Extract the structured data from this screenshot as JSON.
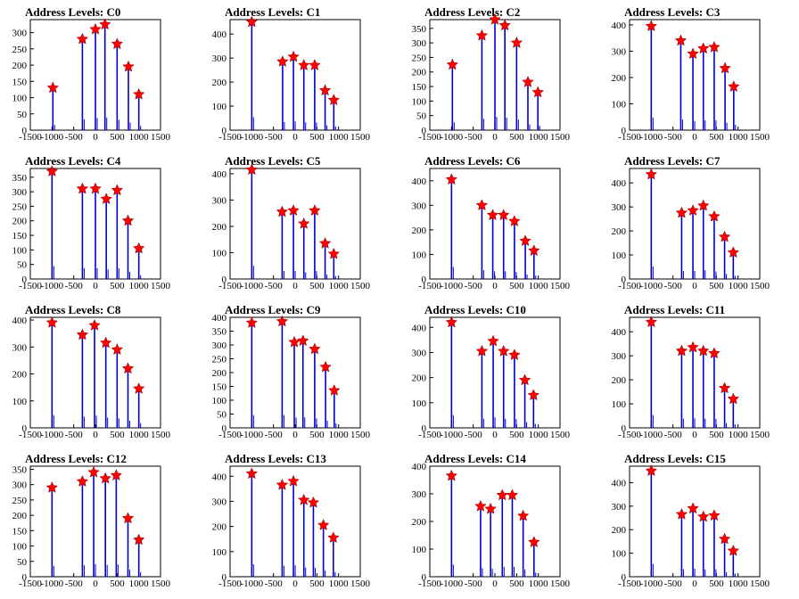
{
  "colors": {
    "histogram": "#0000cc",
    "peak_marker": "#ff0000",
    "axis": "#000000"
  },
  "chart_data": [
    {
      "type": "bar",
      "title": "Address Levels: C0",
      "xlim": [
        -1500,
        1500
      ],
      "ylim": [
        0,
        340
      ],
      "yticks": [
        0,
        50,
        100,
        150,
        200,
        250,
        300
      ],
      "xticks": [
        -1500,
        -1000,
        -500,
        0,
        500,
        1000,
        1500
      ],
      "xtick_labels": [
        "-1500",
        "-1000",
        "-500",
        "0",
        "500",
        "1000",
        "1500"
      ],
      "peaks": [
        {
          "x": -980,
          "y": 130
        },
        {
          "x": -300,
          "y": 280
        },
        {
          "x": 0,
          "y": 310
        },
        {
          "x": 220,
          "y": 325
        },
        {
          "x": 500,
          "y": 265
        },
        {
          "x": 760,
          "y": 195
        },
        {
          "x": 1000,
          "y": 110
        }
      ]
    },
    {
      "type": "bar",
      "title": "Address Levels: C1",
      "xlim": [
        -1500,
        1500
      ],
      "ylim": [
        0,
        460
      ],
      "yticks": [
        0,
        100,
        200,
        300,
        400
      ],
      "xticks": [
        -1500,
        -1000,
        -500,
        0,
        500,
        1000,
        1500
      ],
      "xtick_labels": [
        "-1500",
        "-1000",
        "-500",
        "0",
        "500",
        "1000",
        "1500"
      ],
      "peaks": [
        {
          "x": -1000,
          "y": 450
        },
        {
          "x": -290,
          "y": 285
        },
        {
          "x": -40,
          "y": 305
        },
        {
          "x": 200,
          "y": 270
        },
        {
          "x": 450,
          "y": 270
        },
        {
          "x": 690,
          "y": 165
        },
        {
          "x": 890,
          "y": 125
        }
      ]
    },
    {
      "type": "bar",
      "title": "Address Levels: C2",
      "xlim": [
        -1500,
        1500
      ],
      "ylim": [
        0,
        380
      ],
      "yticks": [
        0,
        50,
        100,
        150,
        200,
        250,
        300,
        350
      ],
      "xticks": [
        -1500,
        -1000,
        -500,
        0,
        500,
        1000,
        1500
      ],
      "xtick_labels": [
        "-1500",
        "-1000",
        "-500",
        "0",
        "500",
        "1000",
        "1500"
      ],
      "peaks": [
        {
          "x": -980,
          "y": 225
        },
        {
          "x": -300,
          "y": 325
        },
        {
          "x": 0,
          "y": 380
        },
        {
          "x": 230,
          "y": 360
        },
        {
          "x": 500,
          "y": 300
        },
        {
          "x": 760,
          "y": 165
        },
        {
          "x": 990,
          "y": 130
        }
      ]
    },
    {
      "type": "bar",
      "title": "Address Levels: C3",
      "xlim": [
        -1500,
        1500
      ],
      "ylim": [
        0,
        420
      ],
      "yticks": [
        0,
        100,
        200,
        300,
        400
      ],
      "xticks": [
        -1500,
        -1000,
        -500,
        0,
        500,
        1000,
        1500
      ],
      "xtick_labels": [
        "-1500",
        "-1000",
        "-500",
        "0",
        "500",
        "1000",
        "1500"
      ],
      "peaks": [
        {
          "x": -1000,
          "y": 395
        },
        {
          "x": -320,
          "y": 340
        },
        {
          "x": -40,
          "y": 290
        },
        {
          "x": 200,
          "y": 310
        },
        {
          "x": 450,
          "y": 315
        },
        {
          "x": 700,
          "y": 235
        },
        {
          "x": 900,
          "y": 165
        }
      ]
    },
    {
      "type": "bar",
      "title": "Address Levels: C4",
      "xlim": [
        -1500,
        1500
      ],
      "ylim": [
        0,
        380
      ],
      "yticks": [
        0,
        50,
        100,
        150,
        200,
        250,
        300,
        350
      ],
      "xticks": [
        -1500,
        -1000,
        -500,
        0,
        500,
        1000,
        1500
      ],
      "xtick_labels": [
        "-1500",
        "-1000",
        "-500",
        "0",
        "500",
        "1000",
        "1500"
      ],
      "peaks": [
        {
          "x": -1000,
          "y": 370
        },
        {
          "x": -300,
          "y": 310
        },
        {
          "x": 0,
          "y": 310
        },
        {
          "x": 250,
          "y": 275
        },
        {
          "x": 500,
          "y": 305
        },
        {
          "x": 750,
          "y": 200
        },
        {
          "x": 1000,
          "y": 105
        }
      ]
    },
    {
      "type": "bar",
      "title": "Address Levels: C5",
      "xlim": [
        -1500,
        1500
      ],
      "ylim": [
        0,
        420
      ],
      "yticks": [
        0,
        100,
        200,
        300,
        400
      ],
      "xticks": [
        -1500,
        -1000,
        -500,
        0,
        500,
        1000,
        1500
      ],
      "xtick_labels": [
        "-1500",
        "-1000",
        "-500",
        "0",
        "500",
        "1000",
        "1500"
      ],
      "peaks": [
        {
          "x": -1000,
          "y": 415
        },
        {
          "x": -300,
          "y": 255
        },
        {
          "x": -40,
          "y": 260
        },
        {
          "x": 200,
          "y": 210
        },
        {
          "x": 450,
          "y": 260
        },
        {
          "x": 690,
          "y": 135
        },
        {
          "x": 890,
          "y": 95
        }
      ]
    },
    {
      "type": "bar",
      "title": "Address Levels: C6",
      "xlim": [
        -1500,
        1500
      ],
      "ylim": [
        0,
        450
      ],
      "yticks": [
        0,
        100,
        200,
        300,
        400
      ],
      "xticks": [
        -1500,
        -1000,
        -500,
        0,
        500,
        1000,
        1500
      ],
      "xtick_labels": [
        "-1500",
        "-1000",
        "-500",
        "0",
        "500",
        "1000",
        "1500"
      ],
      "peaks": [
        {
          "x": -1000,
          "y": 405
        },
        {
          "x": -300,
          "y": 300
        },
        {
          "x": -50,
          "y": 260
        },
        {
          "x": 200,
          "y": 260
        },
        {
          "x": 450,
          "y": 235
        },
        {
          "x": 700,
          "y": 155
        },
        {
          "x": 900,
          "y": 115
        }
      ]
    },
    {
      "type": "bar",
      "title": "Address Levels: C7",
      "xlim": [
        -1500,
        1500
      ],
      "ylim": [
        0,
        460
      ],
      "yticks": [
        0,
        100,
        200,
        300,
        400
      ],
      "xticks": [
        -1500,
        -1000,
        -500,
        0,
        500,
        1000,
        1500
      ],
      "xtick_labels": [
        "-1500",
        "-1000",
        "-500",
        "0",
        "500",
        "1000",
        "1500"
      ],
      "peaks": [
        {
          "x": -1000,
          "y": 435
        },
        {
          "x": -300,
          "y": 275
        },
        {
          "x": -40,
          "y": 285
        },
        {
          "x": 200,
          "y": 305
        },
        {
          "x": 450,
          "y": 260
        },
        {
          "x": 690,
          "y": 175
        },
        {
          "x": 890,
          "y": 110
        }
      ]
    },
    {
      "type": "bar",
      "title": "Address Levels: C8",
      "xlim": [
        -1500,
        1500
      ],
      "ylim": [
        0,
        410
      ],
      "yticks": [
        0,
        100,
        200,
        300,
        400
      ],
      "xticks": [
        -1500,
        -1000,
        -500,
        0,
        500,
        1000,
        1500
      ],
      "xtick_labels": [
        "-1500",
        "-1000",
        "-500",
        "0",
        "500",
        "1000",
        "1500"
      ],
      "peaks": [
        {
          "x": -1000,
          "y": 390
        },
        {
          "x": -300,
          "y": 345
        },
        {
          "x": -20,
          "y": 380
        },
        {
          "x": 240,
          "y": 315
        },
        {
          "x": 500,
          "y": 290
        },
        {
          "x": 750,
          "y": 220
        },
        {
          "x": 1000,
          "y": 145
        }
      ]
    },
    {
      "type": "bar",
      "title": "Address Levels: C9",
      "xlim": [
        -1500,
        1500
      ],
      "ylim": [
        0,
        400
      ],
      "yticks": [
        0,
        50,
        100,
        150,
        200,
        250,
        300,
        350,
        400
      ],
      "xticks": [
        -1500,
        -1000,
        -500,
        0,
        500,
        1000,
        1500
      ],
      "xtick_labels": [
        "-1500",
        "-1000",
        "-500",
        "0",
        "500",
        "1000",
        "1500"
      ],
      "peaks": [
        {
          "x": -1000,
          "y": 380
        },
        {
          "x": -300,
          "y": 385
        },
        {
          "x": -20,
          "y": 310
        },
        {
          "x": 180,
          "y": 315
        },
        {
          "x": 450,
          "y": 285
        },
        {
          "x": 700,
          "y": 220
        },
        {
          "x": 900,
          "y": 135
        }
      ]
    },
    {
      "type": "bar",
      "title": "Address Levels: C10",
      "xlim": [
        -1500,
        1500
      ],
      "ylim": [
        0,
        440
      ],
      "yticks": [
        0,
        100,
        200,
        300,
        400
      ],
      "xticks": [
        -1500,
        -1000,
        -500,
        0,
        500,
        1000,
        1500
      ],
      "xtick_labels": [
        "-1500",
        "-1000",
        "-500",
        "0",
        "500",
        "1000",
        "1500"
      ],
      "peaks": [
        {
          "x": -1000,
          "y": 420
        },
        {
          "x": -300,
          "y": 305
        },
        {
          "x": -40,
          "y": 345
        },
        {
          "x": 200,
          "y": 305
        },
        {
          "x": 450,
          "y": 290
        },
        {
          "x": 690,
          "y": 190
        },
        {
          "x": 890,
          "y": 130
        }
      ]
    },
    {
      "type": "bar",
      "title": "Address Levels: C11",
      "xlim": [
        -1500,
        1500
      ],
      "ylim": [
        0,
        460
      ],
      "yticks": [
        0,
        100,
        200,
        300,
        400
      ],
      "xticks": [
        -1500,
        -1000,
        -500,
        0,
        500,
        1000,
        1500
      ],
      "xtick_labels": [
        "-1500",
        "-1000",
        "-500",
        "0",
        "500",
        "1000",
        "1500"
      ],
      "peaks": [
        {
          "x": -1000,
          "y": 440
        },
        {
          "x": -300,
          "y": 320
        },
        {
          "x": -40,
          "y": 335
        },
        {
          "x": 200,
          "y": 320
        },
        {
          "x": 450,
          "y": 310
        },
        {
          "x": 690,
          "y": 165
        },
        {
          "x": 890,
          "y": 120
        }
      ]
    },
    {
      "type": "bar",
      "title": "Address Levels: C12",
      "xlim": [
        -1500,
        1500
      ],
      "ylim": [
        0,
        360
      ],
      "yticks": [
        0,
        50,
        100,
        150,
        200,
        250,
        300,
        350
      ],
      "xticks": [
        -1500,
        -1000,
        -500,
        0,
        500,
        1000,
        1500
      ],
      "xtick_labels": [
        "-1500",
        "-1000",
        "-500",
        "0",
        "500",
        "1000",
        "1500"
      ],
      "peaks": [
        {
          "x": -1000,
          "y": 290
        },
        {
          "x": -300,
          "y": 310
        },
        {
          "x": -40,
          "y": 340
        },
        {
          "x": 230,
          "y": 320
        },
        {
          "x": 480,
          "y": 330
        },
        {
          "x": 750,
          "y": 190
        },
        {
          "x": 1000,
          "y": 120
        }
      ]
    },
    {
      "type": "bar",
      "title": "Address Levels: C13",
      "xlim": [
        -1500,
        1500
      ],
      "ylim": [
        0,
        440
      ],
      "yticks": [
        0,
        100,
        200,
        300,
        400
      ],
      "xticks": [
        -1500,
        -1000,
        -500,
        0,
        500,
        1000,
        1500
      ],
      "xtick_labels": [
        "-1500",
        "-1000",
        "-500",
        "0",
        "500",
        "1000",
        "1500"
      ],
      "peaks": [
        {
          "x": -1000,
          "y": 410
        },
        {
          "x": -300,
          "y": 365
        },
        {
          "x": -40,
          "y": 380
        },
        {
          "x": 200,
          "y": 305
        },
        {
          "x": 420,
          "y": 295
        },
        {
          "x": 650,
          "y": 205
        },
        {
          "x": 880,
          "y": 155
        }
      ]
    },
    {
      "type": "bar",
      "title": "Address Levels: C14",
      "xlim": [
        -1500,
        1500
      ],
      "ylim": [
        0,
        400
      ],
      "yticks": [
        0,
        100,
        200,
        300,
        400
      ],
      "xticks": [
        -1500,
        -1000,
        -500,
        0,
        500,
        1000,
        1500
      ],
      "xtick_labels": [
        "-1500",
        "-1000",
        "-500",
        "0",
        "500",
        "1000",
        "1500"
      ],
      "peaks": [
        {
          "x": -1000,
          "y": 365
        },
        {
          "x": -330,
          "y": 255
        },
        {
          "x": -100,
          "y": 245
        },
        {
          "x": 170,
          "y": 295
        },
        {
          "x": 400,
          "y": 295
        },
        {
          "x": 650,
          "y": 220
        },
        {
          "x": 900,
          "y": 125
        }
      ]
    },
    {
      "type": "bar",
      "title": "Address Levels: C15",
      "xlim": [
        -1500,
        1500
      ],
      "ylim": [
        0,
        470
      ],
      "yticks": [
        0,
        100,
        200,
        300,
        400
      ],
      "xticks": [
        -1500,
        -1000,
        -500,
        0,
        500,
        1000,
        1500
      ],
      "xtick_labels": [
        "-1500",
        "-1000",
        "-500",
        "0",
        "500",
        "1000",
        "1500"
      ],
      "peaks": [
        {
          "x": -1000,
          "y": 450
        },
        {
          "x": -300,
          "y": 265
        },
        {
          "x": -40,
          "y": 290
        },
        {
          "x": 200,
          "y": 255
        },
        {
          "x": 450,
          "y": 260
        },
        {
          "x": 690,
          "y": 160
        },
        {
          "x": 890,
          "y": 110
        }
      ]
    }
  ]
}
